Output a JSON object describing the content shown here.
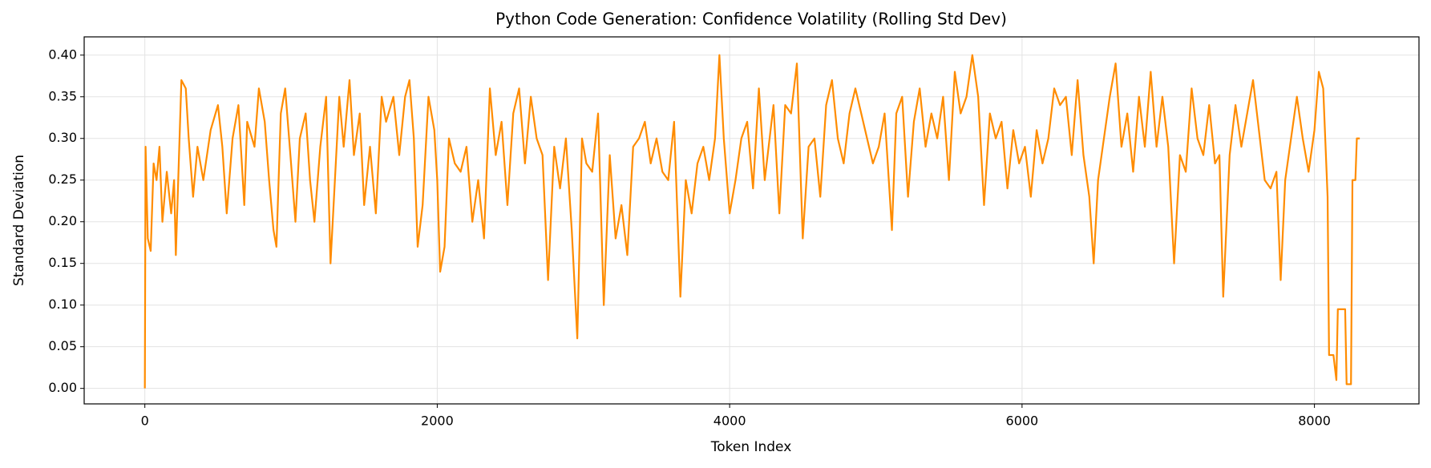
{
  "chart_data": {
    "type": "line",
    "title": "Python Code Generation: Confidence Volatility (Rolling Std Dev)",
    "xlabel": "Token Index",
    "ylabel": "Standard Deviation",
    "color": "#ff8c00",
    "grid": true,
    "xlim": [
      -415,
      8715
    ],
    "ylim": [
      -0.0186,
      0.4219
    ],
    "xticks": [
      0,
      2000,
      4000,
      6000,
      8000
    ],
    "yticks": [
      {
        "value": 0,
        "label": "0.00"
      },
      {
        "value": 0.05,
        "label": "0.05"
      },
      {
        "value": 0.1,
        "label": "0.10"
      },
      {
        "value": 0.15,
        "label": "0.15"
      },
      {
        "value": 0.2,
        "label": "0.20"
      },
      {
        "value": 0.25,
        "label": "0.25"
      },
      {
        "value": 0.3,
        "label": "0.30"
      },
      {
        "value": 0.35,
        "label": "0.35"
      },
      {
        "value": 0.4,
        "label": "0.40"
      }
    ],
    "x": [
      0,
      5,
      20,
      40,
      60,
      80,
      100,
      120,
      150,
      180,
      200,
      212,
      250,
      280,
      300,
      330,
      360,
      400,
      450,
      500,
      530,
      560,
      600,
      640,
      680,
      700,
      750,
      780,
      820,
      850,
      880,
      900,
      930,
      960,
      1000,
      1030,
      1060,
      1100,
      1130,
      1160,
      1200,
      1240,
      1270,
      1300,
      1330,
      1360,
      1400,
      1430,
      1470,
      1500,
      1540,
      1580,
      1620,
      1650,
      1700,
      1740,
      1780,
      1810,
      1840,
      1866,
      1900,
      1940,
      1980,
      2000,
      2020,
      2050,
      2080,
      2120,
      2160,
      2200,
      2240,
      2280,
      2320,
      2360,
      2400,
      2440,
      2480,
      2520,
      2560,
      2600,
      2640,
      2680,
      2720,
      2758,
      2800,
      2840,
      2880,
      2920,
      2958,
      2990,
      3020,
      3060,
      3100,
      3139,
      3180,
      3220,
      3260,
      3300,
      3340,
      3380,
      3420,
      3460,
      3500,
      3540,
      3580,
      3620,
      3663,
      3700,
      3740,
      3780,
      3820,
      3860,
      3900,
      3930,
      3960,
      4000,
      4040,
      4080,
      4120,
      4160,
      4200,
      4240,
      4300,
      4340,
      4380,
      4420,
      4460,
      4500,
      4540,
      4580,
      4620,
      4660,
      4700,
      4740,
      4780,
      4820,
      4860,
      4900,
      4940,
      4980,
      5020,
      5060,
      5110,
      5140,
      5180,
      5220,
      5260,
      5300,
      5340,
      5380,
      5420,
      5460,
      5500,
      5540,
      5580,
      5620,
      5660,
      5700,
      5740,
      5780,
      5820,
      5860,
      5900,
      5940,
      5980,
      6020,
      6060,
      6100,
      6140,
      6180,
      6220,
      6260,
      6300,
      6340,
      6380,
      6420,
      6460,
      6490,
      6520,
      6560,
      6600,
      6640,
      6680,
      6720,
      6760,
      6800,
      6840,
      6880,
      6920,
      6960,
      7000,
      7040,
      7080,
      7120,
      7160,
      7200,
      7240,
      7280,
      7320,
      7350,
      7376,
      7420,
      7460,
      7500,
      7540,
      7580,
      7620,
      7660,
      7700,
      7740,
      7769,
      7800,
      7840,
      7880,
      7920,
      7960,
      8000,
      8030,
      8060,
      8090,
      8100,
      8130,
      8150,
      8160,
      8210,
      8220,
      8250,
      8260,
      8280,
      8290,
      8310
    ],
    "values": [
      0,
      0.29,
      0.18,
      0.165,
      0.27,
      0.25,
      0.29,
      0.2,
      0.26,
      0.21,
      0.25,
      0.16,
      0.37,
      0.36,
      0.3,
      0.23,
      0.29,
      0.25,
      0.31,
      0.34,
      0.29,
      0.21,
      0.3,
      0.34,
      0.22,
      0.32,
      0.29,
      0.36,
      0.32,
      0.25,
      0.19,
      0.17,
      0.33,
      0.36,
      0.27,
      0.2,
      0.3,
      0.33,
      0.25,
      0.2,
      0.29,
      0.35,
      0.15,
      0.25,
      0.35,
      0.29,
      0.37,
      0.28,
      0.33,
      0.22,
      0.29,
      0.21,
      0.35,
      0.32,
      0.35,
      0.28,
      0.35,
      0.37,
      0.3,
      0.17,
      0.22,
      0.35,
      0.31,
      0.25,
      0.14,
      0.17,
      0.3,
      0.27,
      0.26,
      0.29,
      0.2,
      0.25,
      0.18,
      0.36,
      0.28,
      0.32,
      0.22,
      0.33,
      0.36,
      0.27,
      0.35,
      0.3,
      0.28,
      0.13,
      0.29,
      0.24,
      0.3,
      0.19,
      0.06,
      0.3,
      0.27,
      0.26,
      0.33,
      0.1,
      0.28,
      0.18,
      0.22,
      0.16,
      0.29,
      0.3,
      0.32,
      0.27,
      0.3,
      0.26,
      0.25,
      0.32,
      0.11,
      0.25,
      0.21,
      0.27,
      0.29,
      0.25,
      0.3,
      0.4,
      0.3,
      0.21,
      0.25,
      0.3,
      0.32,
      0.24,
      0.36,
      0.25,
      0.34,
      0.21,
      0.34,
      0.33,
      0.39,
      0.18,
      0.29,
      0.3,
      0.23,
      0.34,
      0.37,
      0.3,
      0.27,
      0.33,
      0.36,
      0.33,
      0.3,
      0.27,
      0.29,
      0.33,
      0.19,
      0.33,
      0.35,
      0.23,
      0.32,
      0.36,
      0.29,
      0.33,
      0.3,
      0.35,
      0.25,
      0.38,
      0.33,
      0.35,
      0.4,
      0.35,
      0.22,
      0.33,
      0.3,
      0.32,
      0.24,
      0.31,
      0.27,
      0.29,
      0.23,
      0.31,
      0.27,
      0.3,
      0.36,
      0.34,
      0.35,
      0.28,
      0.37,
      0.28,
      0.23,
      0.15,
      0.25,
      0.3,
      0.35,
      0.39,
      0.29,
      0.33,
      0.26,
      0.35,
      0.29,
      0.38,
      0.29,
      0.35,
      0.29,
      0.15,
      0.28,
      0.26,
      0.36,
      0.3,
      0.28,
      0.34,
      0.27,
      0.28,
      0.11,
      0.28,
      0.34,
      0.29,
      0.33,
      0.37,
      0.31,
      0.25,
      0.24,
      0.26,
      0.13,
      0.25,
      0.3,
      0.35,
      0.3,
      0.26,
      0.31,
      0.38,
      0.36,
      0.23,
      0.04,
      0.04,
      0.01,
      0.095,
      0.095,
      0.005,
      0.005,
      0.25,
      0.25,
      0.3,
      0.3
    ]
  }
}
